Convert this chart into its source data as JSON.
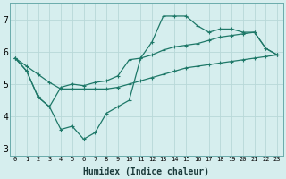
{
  "xlabel": "Humidex (Indice chaleur)",
  "x_values": [
    0,
    1,
    2,
    3,
    4,
    5,
    6,
    7,
    8,
    9,
    10,
    11,
    12,
    13,
    14,
    15,
    16,
    17,
    18,
    19,
    20,
    21,
    22,
    23
  ],
  "line1_y": [
    5.8,
    5.4,
    4.6,
    4.3,
    3.6,
    3.7,
    3.3,
    3.5,
    4.1,
    4.3,
    4.5,
    5.8,
    6.3,
    7.1,
    7.1,
    7.1,
    6.8,
    6.6,
    6.7,
    6.7,
    6.6,
    6.6,
    6.1,
    5.9
  ],
  "line2_y": [
    5.8,
    5.55,
    5.3,
    5.05,
    4.85,
    4.85,
    4.85,
    4.85,
    4.85,
    4.9,
    5.0,
    5.1,
    5.2,
    5.3,
    5.4,
    5.5,
    5.55,
    5.6,
    5.65,
    5.7,
    5.75,
    5.8,
    5.85,
    5.9
  ],
  "line3_y": [
    5.8,
    5.4,
    4.6,
    4.3,
    4.9,
    5.0,
    4.95,
    5.05,
    5.1,
    5.25,
    5.75,
    5.8,
    5.9,
    6.05,
    6.15,
    6.2,
    6.25,
    6.35,
    6.45,
    6.5,
    6.55,
    6.6,
    6.1,
    5.9
  ],
  "bg_color": "#d6eeee",
  "grid_color": "#b8d8d8",
  "line_color": "#1e7868",
  "ylim": [
    2.8,
    7.5
  ],
  "yticks": [
    3,
    4,
    5,
    6,
    7
  ],
  "xlim": [
    -0.5,
    23.5
  ]
}
